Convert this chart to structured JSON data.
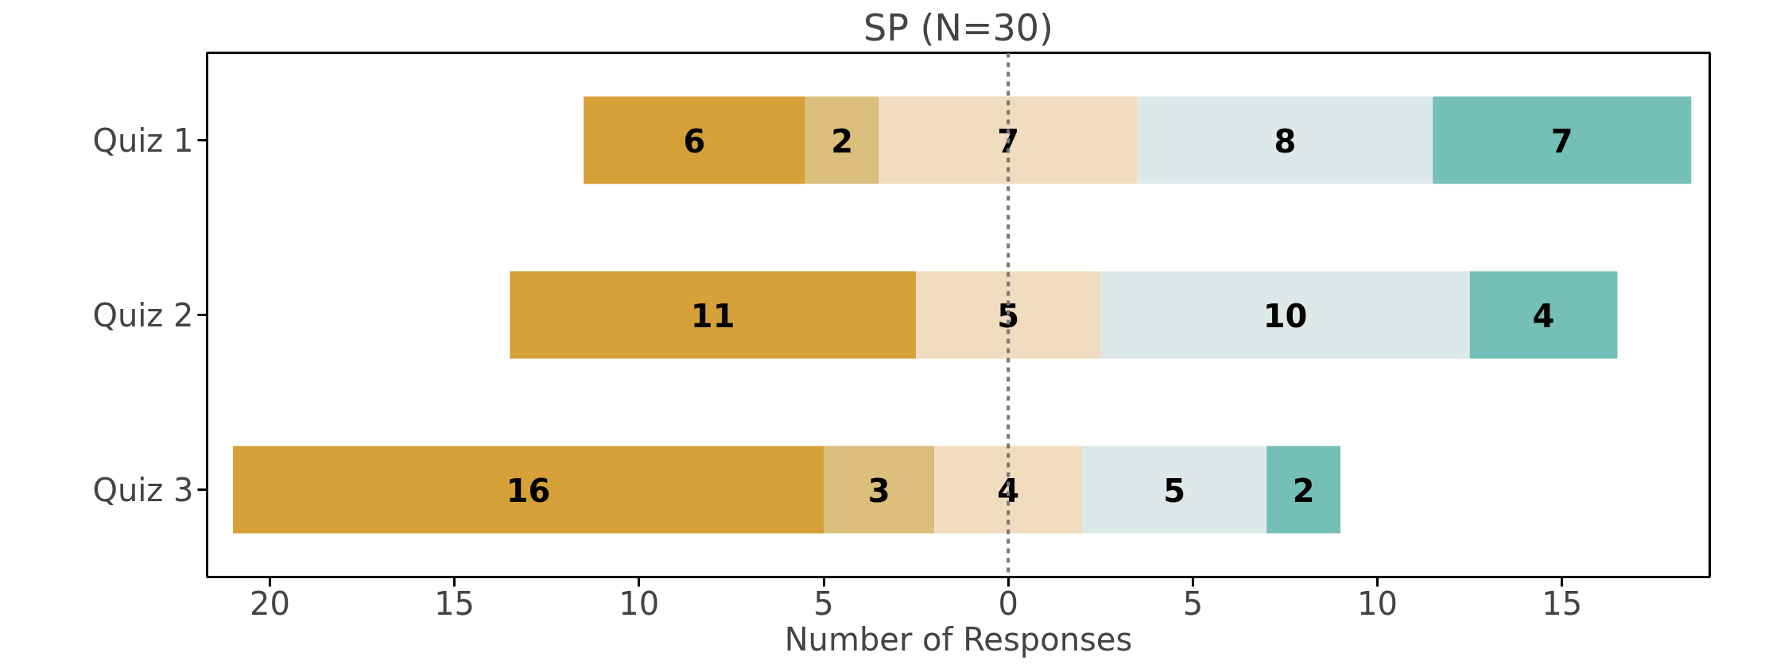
{
  "chart_data": {
    "type": "bar",
    "orientation": "horizontal",
    "title": "SP (N=30)",
    "xlabel": "Number of Responses",
    "categories": [
      "Quiz 1",
      "Quiz 2",
      "Quiz 3"
    ],
    "series": [
      {
        "color": "#d4a037",
        "values": [
          6,
          11,
          16
        ],
        "base": [
          -11.5,
          -13.5,
          -21
        ]
      },
      {
        "color": "#dbbd7c",
        "values": [
          2,
          null,
          3
        ],
        "base": [
          -5.5,
          null,
          -5
        ]
      },
      {
        "color": "#f0dcbf",
        "values": [
          7,
          5,
          4
        ],
        "base": [
          -3.5,
          -2.5,
          -2
        ]
      },
      {
        "color": "#dde9e8",
        "values": [
          8,
          10,
          5
        ],
        "base": [
          3.5,
          2.5,
          2
        ]
      },
      {
        "color": "#74bfb6",
        "values": [
          7,
          4,
          2
        ],
        "base": [
          11.5,
          12.5,
          7
        ]
      }
    ],
    "xlim": [
      -21.7,
      19.0
    ],
    "xticks": [
      {
        "value": -20,
        "label": "20"
      },
      {
        "value": -15,
        "label": "15"
      },
      {
        "value": -10,
        "label": "10"
      },
      {
        "value": -5,
        "label": "5"
      },
      0,
      5,
      10,
      15
    ],
    "ref_lines": [
      {
        "axis": "x",
        "value": 0,
        "color": "#777777",
        "line_style": "dashed"
      }
    ],
    "data_labels": true,
    "grid": false
  }
}
